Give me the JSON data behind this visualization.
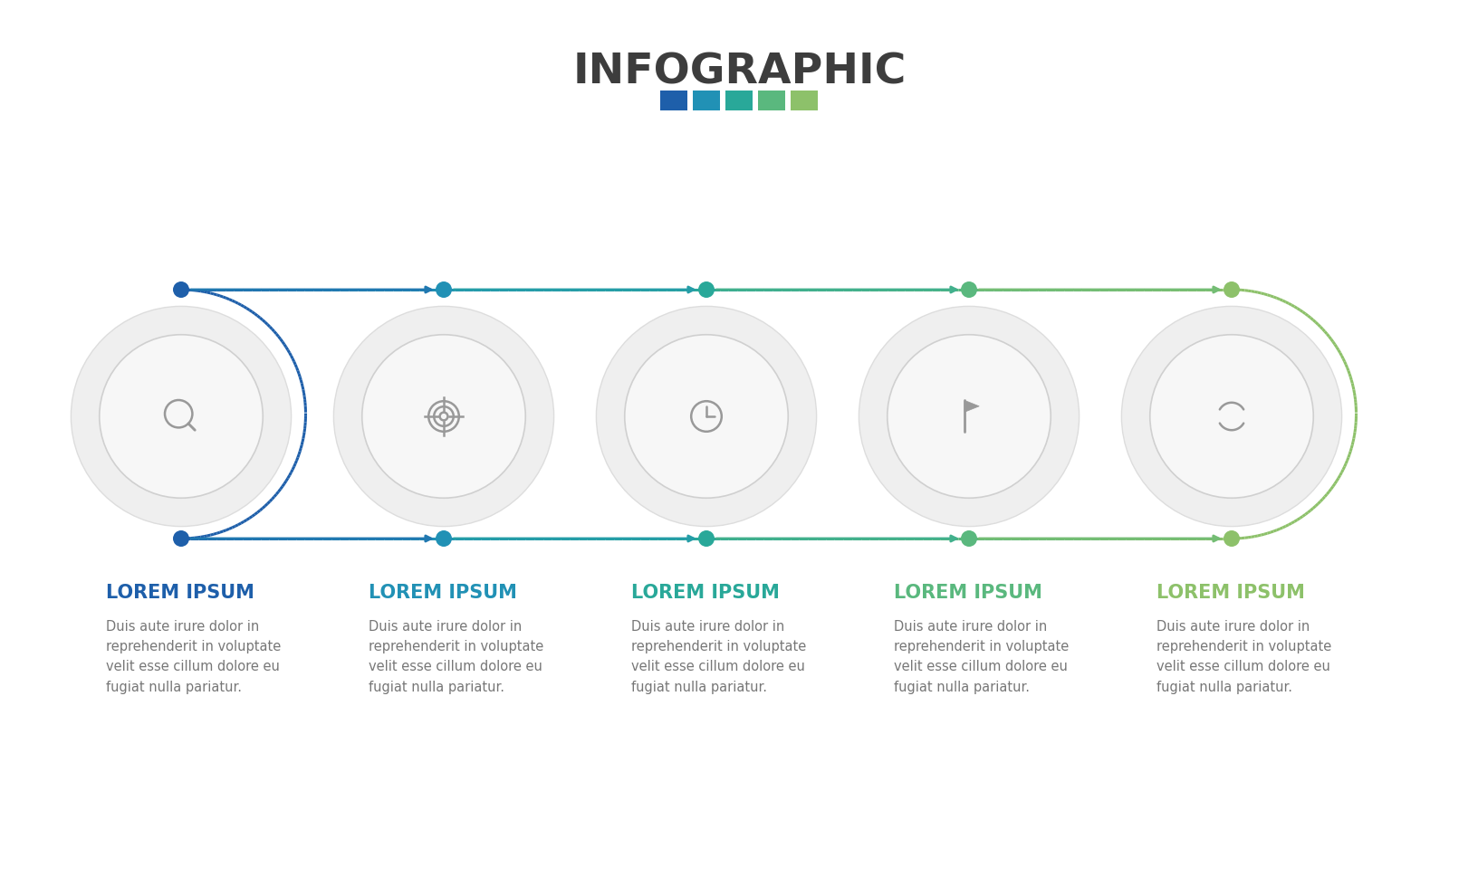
{
  "title": "INFOGRAPHIC",
  "title_color": "#3d3d3d",
  "title_fontsize": 34,
  "bg_color": "#ffffff",
  "colors": [
    "#1e5faa",
    "#2191b5",
    "#29a899",
    "#5ab87e",
    "#8dc16a"
  ],
  "square_colors": [
    "#1e5faa",
    "#2191b5",
    "#29a899",
    "#5ab87e",
    "#8dc16a"
  ],
  "n_steps": 5,
  "heading": "LOREM IPSUM",
  "body_text": "Duis aute irure dolor in\nreprehenderit in voluptate\nvelit esse cillum dolore eu\nfugiat nulla pariatur.",
  "heading_fontsize": 15,
  "body_fontsize": 10.5,
  "icon_color": "#999999"
}
